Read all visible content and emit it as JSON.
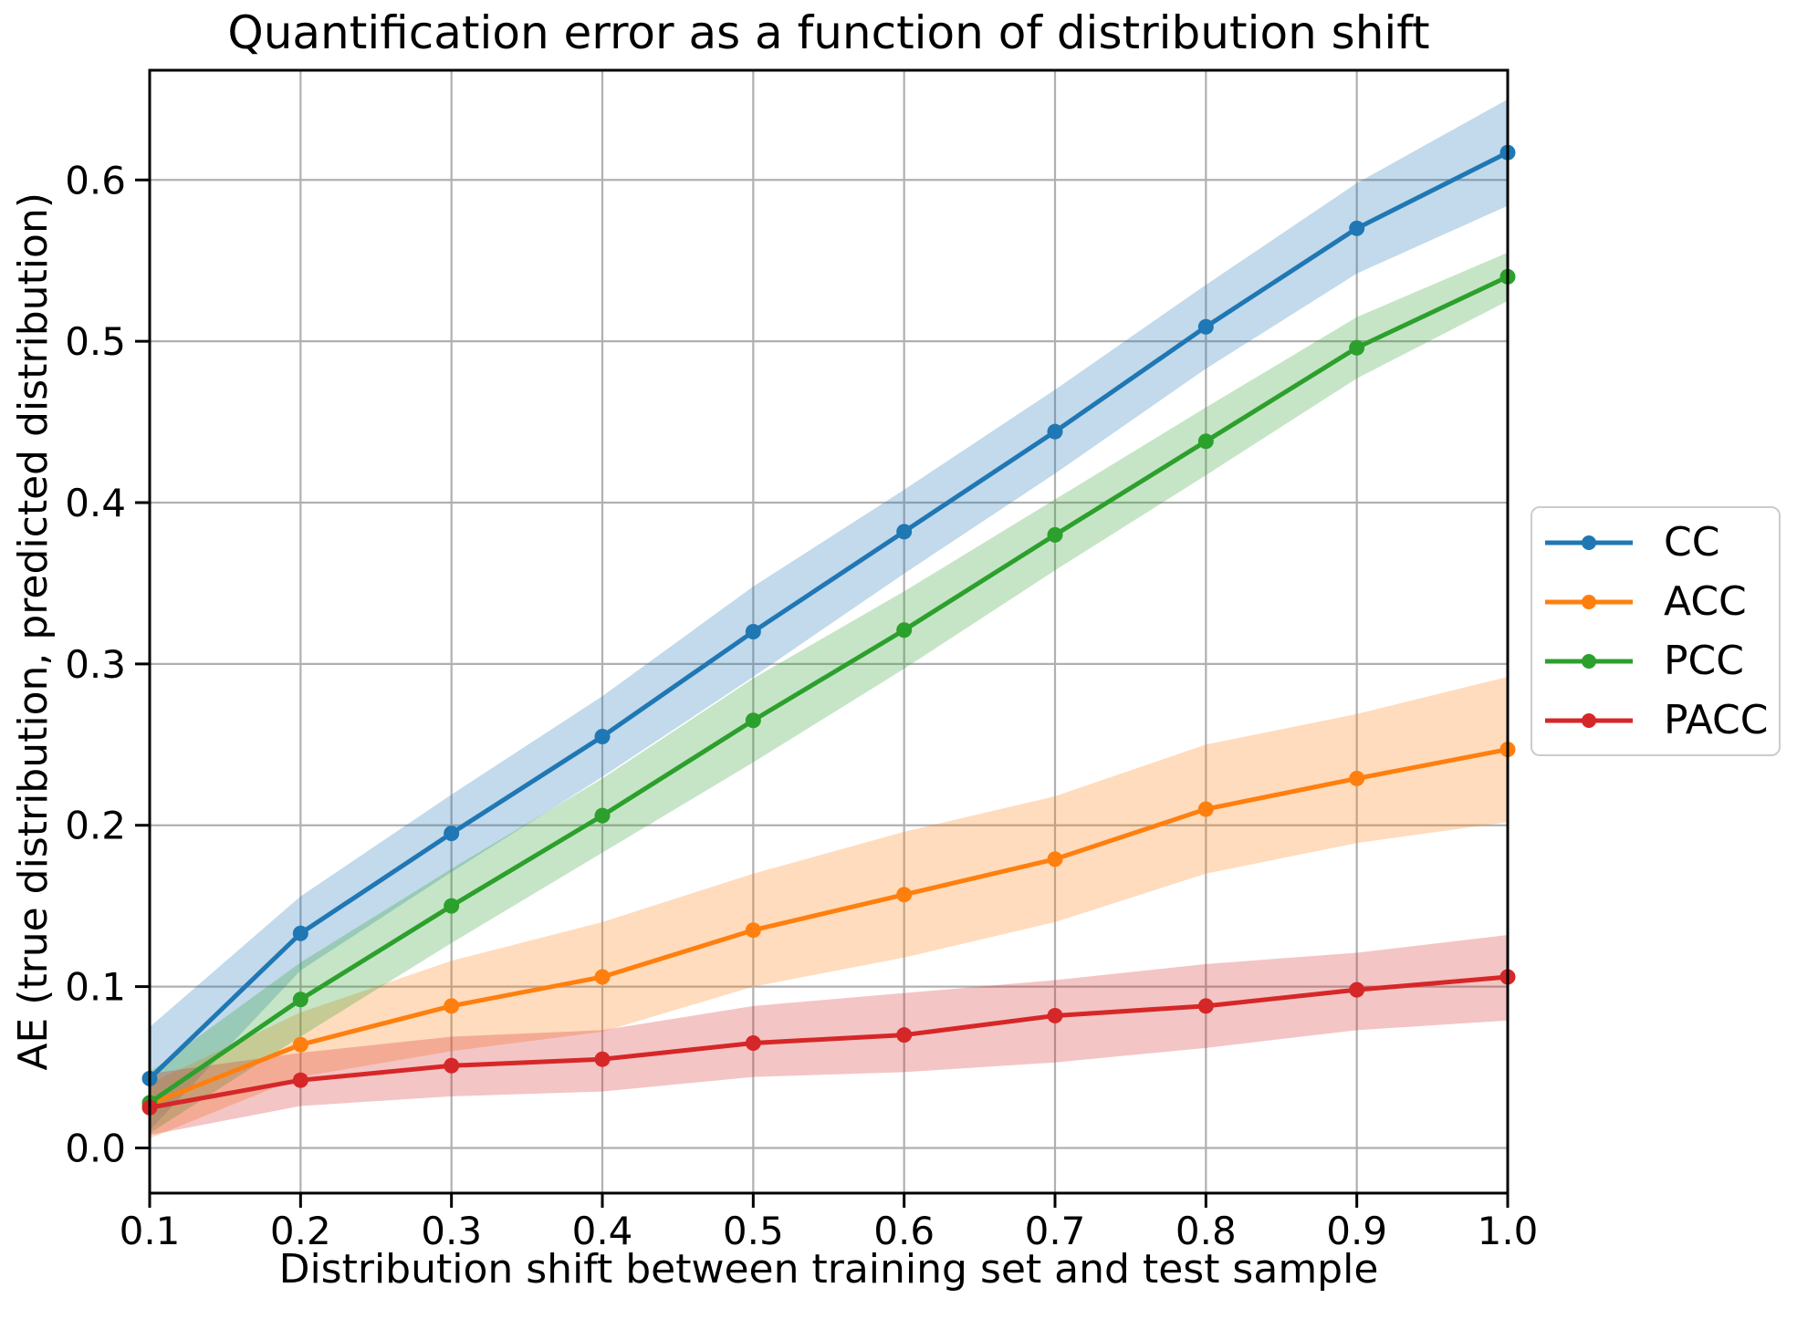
{
  "title": "Quantification error as a function of distribution shift",
  "axes": {
    "xlabel": "Distribution shift between training set and test sample",
    "ylabel": "AE (true distribution, predicted distribution)",
    "x_tick_labels": [
      "0.1",
      "0.2",
      "0.3",
      "0.4",
      "0.5",
      "0.6",
      "0.7",
      "0.8",
      "0.9",
      "1.0"
    ],
    "y_tick_labels": [
      "0.0",
      "0.1",
      "0.2",
      "0.3",
      "0.4",
      "0.5",
      "0.6"
    ]
  },
  "chart_data": {
    "type": "line",
    "title": "Quantification error as a function of distribution shift",
    "xlabel": "Distribution shift between training set and test sample",
    "ylabel": "AE (true distribution, predicted distribution)",
    "x": [
      0.1,
      0.2,
      0.3,
      0.4,
      0.5,
      0.6,
      0.7,
      0.8,
      0.9,
      1.0
    ],
    "xlim": [
      0.1,
      1.0
    ],
    "ylim": [
      -0.028,
      0.668
    ],
    "grid": true,
    "grid_color": "#b0b0b0",
    "band_opacity": 0.27,
    "marker": "circle",
    "legend_position": "center right, outside axes",
    "legend_entries": [
      "CC",
      "ACC",
      "PCC",
      "PACC"
    ],
    "series": [
      {
        "name": "CC",
        "color": "#1f77b4",
        "values": [
          0.043,
          0.133,
          0.195,
          0.255,
          0.32,
          0.382,
          0.444,
          0.509,
          0.57,
          0.617
        ],
        "band_lower": [
          0.011,
          0.11,
          0.171,
          0.23,
          0.292,
          0.356,
          0.418,
          0.483,
          0.542,
          0.584
        ],
        "band_upper": [
          0.075,
          0.156,
          0.219,
          0.28,
          0.348,
          0.408,
          0.47,
          0.535,
          0.598,
          0.65
        ]
      },
      {
        "name": "ACC",
        "color": "#ff7f0e",
        "values": [
          0.027,
          0.064,
          0.088,
          0.106,
          0.135,
          0.157,
          0.179,
          0.21,
          0.229,
          0.247
        ],
        "band_lower": [
          0.006,
          0.044,
          0.06,
          0.072,
          0.1,
          0.118,
          0.14,
          0.17,
          0.189,
          0.202
        ],
        "band_upper": [
          0.04,
          0.084,
          0.116,
          0.14,
          0.17,
          0.196,
          0.218,
          0.25,
          0.269,
          0.292
        ]
      },
      {
        "name": "PCC",
        "color": "#2ca02c",
        "values": [
          0.028,
          0.092,
          0.15,
          0.206,
          0.265,
          0.321,
          0.38,
          0.438,
          0.496,
          0.54
        ],
        "band_lower": [
          0.009,
          0.069,
          0.127,
          0.183,
          0.239,
          0.297,
          0.358,
          0.417,
          0.477,
          0.525
        ],
        "band_upper": [
          0.047,
          0.115,
          0.173,
          0.229,
          0.291,
          0.345,
          0.402,
          0.459,
          0.515,
          0.555
        ]
      },
      {
        "name": "PACC",
        "color": "#d62728",
        "values": [
          0.025,
          0.042,
          0.051,
          0.055,
          0.065,
          0.07,
          0.082,
          0.088,
          0.098,
          0.106
        ],
        "band_lower": [
          0.008,
          0.026,
          0.032,
          0.035,
          0.044,
          0.047,
          0.053,
          0.062,
          0.073,
          0.079
        ],
        "band_upper": [
          0.046,
          0.059,
          0.069,
          0.073,
          0.088,
          0.096,
          0.104,
          0.114,
          0.121,
          0.132
        ]
      }
    ]
  }
}
